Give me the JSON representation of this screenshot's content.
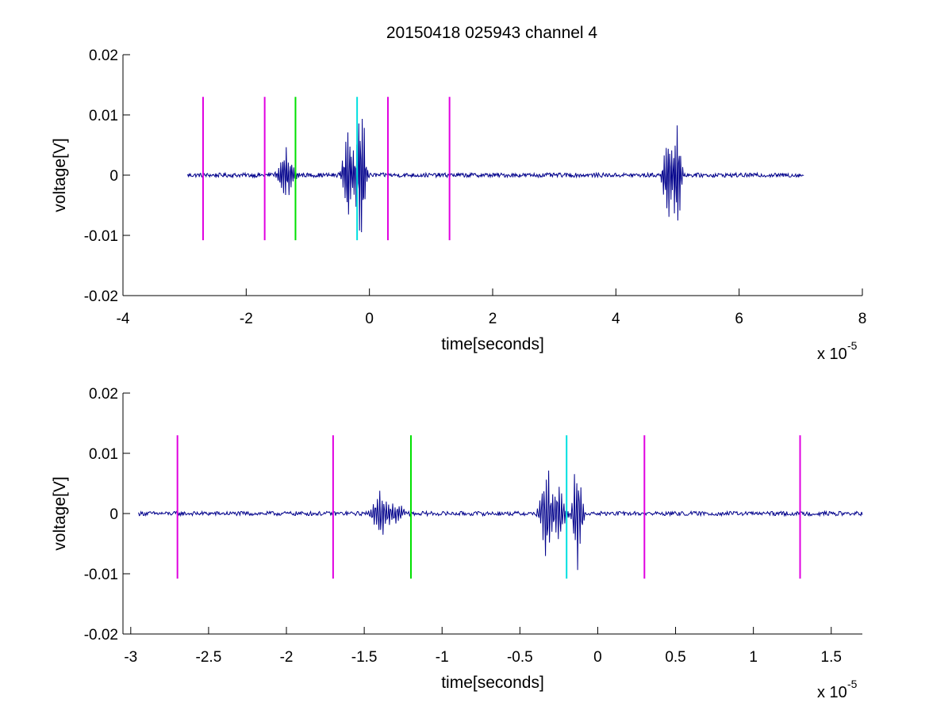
{
  "figure": {
    "title": "20150418 025943 channel 4",
    "colors": {
      "signal": "#00008b",
      "marker_magenta": "#e000e0",
      "marker_green": "#00e000",
      "marker_cyan": "#00e0e0",
      "axes": "#000000"
    }
  },
  "chart_data": [
    {
      "type": "line",
      "title": "20150418 025943 channel 4",
      "xlabel": "time[seconds]",
      "ylabel": "voltage[V]",
      "x_multiplier_label": "x 10",
      "x_multiplier_exponent": "-5",
      "xlim": [
        -4,
        8
      ],
      "ylim": [
        -0.02,
        0.02
      ],
      "x_ticks": [
        -4,
        -2,
        0,
        2,
        4,
        6,
        8
      ],
      "x_tick_labels": [
        "-4",
        "-2",
        "0",
        "2",
        "4",
        "6",
        "8"
      ],
      "y_ticks": [
        0.02,
        0.01,
        0,
        -0.01,
        -0.02
      ],
      "y_tick_labels": [
        "0.02",
        "0.01",
        "0",
        "-0.01",
        "-0.02"
      ],
      "grid": false,
      "series": [
        {
          "signal_range": [
            -2.95,
            7.05
          ],
          "baseline_noise": 0.00035,
          "bursts": [
            {
              "t": -1.35,
              "amp": 0.0045,
              "width": 0.12
            },
            {
              "t": -0.35,
              "amp": 0.0085,
              "width": 0.08
            },
            {
              "t": -0.2,
              "amp": 0.006,
              "width": 0.08
            },
            {
              "t": -0.12,
              "amp": 0.011,
              "width": 0.06
            },
            {
              "t": 4.85,
              "amp": 0.009,
              "width": 0.08
            },
            {
              "t": 5.0,
              "amp": 0.0115,
              "width": 0.06
            }
          ]
        }
      ],
      "markers": [
        {
          "x": -2.7,
          "color": "magenta",
          "y_range": [
            -0.0108,
            0.013
          ]
        },
        {
          "x": -1.7,
          "color": "magenta",
          "y_range": [
            -0.0108,
            0.013
          ]
        },
        {
          "x": -1.2,
          "color": "green",
          "y_range": [
            -0.0108,
            0.013
          ]
        },
        {
          "x": -0.2,
          "color": "cyan",
          "y_range": [
            -0.0108,
            0.013
          ]
        },
        {
          "x": 0.3,
          "color": "magenta",
          "y_range": [
            -0.0108,
            0.013
          ]
        },
        {
          "x": 1.3,
          "color": "magenta",
          "y_range": [
            -0.0108,
            0.013
          ]
        }
      ]
    },
    {
      "type": "line",
      "title": "",
      "xlabel": "time[seconds]",
      "ylabel": "voltage[V]",
      "x_multiplier_label": "x 10",
      "x_multiplier_exponent": "-5",
      "xlim": [
        -3.05,
        1.7
      ],
      "ylim": [
        -0.02,
        0.02
      ],
      "x_ticks": [
        -3,
        -2.5,
        -2,
        -1.5,
        -1,
        -0.5,
        0,
        0.5,
        1,
        1.5
      ],
      "x_tick_labels": [
        "-3",
        "-2.5",
        "-2",
        "-1.5",
        "-1",
        "-0.5",
        "0",
        "0.5",
        "1",
        "1.5"
      ],
      "y_ticks": [
        0.02,
        0.01,
        0,
        -0.01,
        -0.02
      ],
      "y_tick_labels": [
        "0.02",
        "0.01",
        "0",
        "-0.01",
        "-0.02"
      ],
      "grid": false,
      "series": [
        {
          "signal_range": [
            -2.95,
            1.7
          ],
          "baseline_noise": 0.00035,
          "bursts": [
            {
              "t": -1.4,
              "amp": 0.004,
              "width": 0.05
            },
            {
              "t": -1.3,
              "amp": 0.002,
              "width": 0.05
            },
            {
              "t": -0.33,
              "amp": 0.0095,
              "width": 0.035
            },
            {
              "t": -0.25,
              "amp": 0.006,
              "width": 0.035
            },
            {
              "t": -0.13,
              "amp": 0.011,
              "width": 0.03
            }
          ]
        }
      ],
      "markers": [
        {
          "x": -2.7,
          "color": "magenta",
          "y_range": [
            -0.0108,
            0.013
          ]
        },
        {
          "x": -1.7,
          "color": "magenta",
          "y_range": [
            -0.0108,
            0.013
          ]
        },
        {
          "x": -1.2,
          "color": "green",
          "y_range": [
            -0.0108,
            0.013
          ]
        },
        {
          "x": -0.2,
          "color": "cyan",
          "y_range": [
            -0.0108,
            0.013
          ]
        },
        {
          "x": 0.3,
          "color": "magenta",
          "y_range": [
            -0.0108,
            0.013
          ]
        },
        {
          "x": 1.3,
          "color": "magenta",
          "y_range": [
            -0.0108,
            0.013
          ]
        }
      ]
    }
  ]
}
